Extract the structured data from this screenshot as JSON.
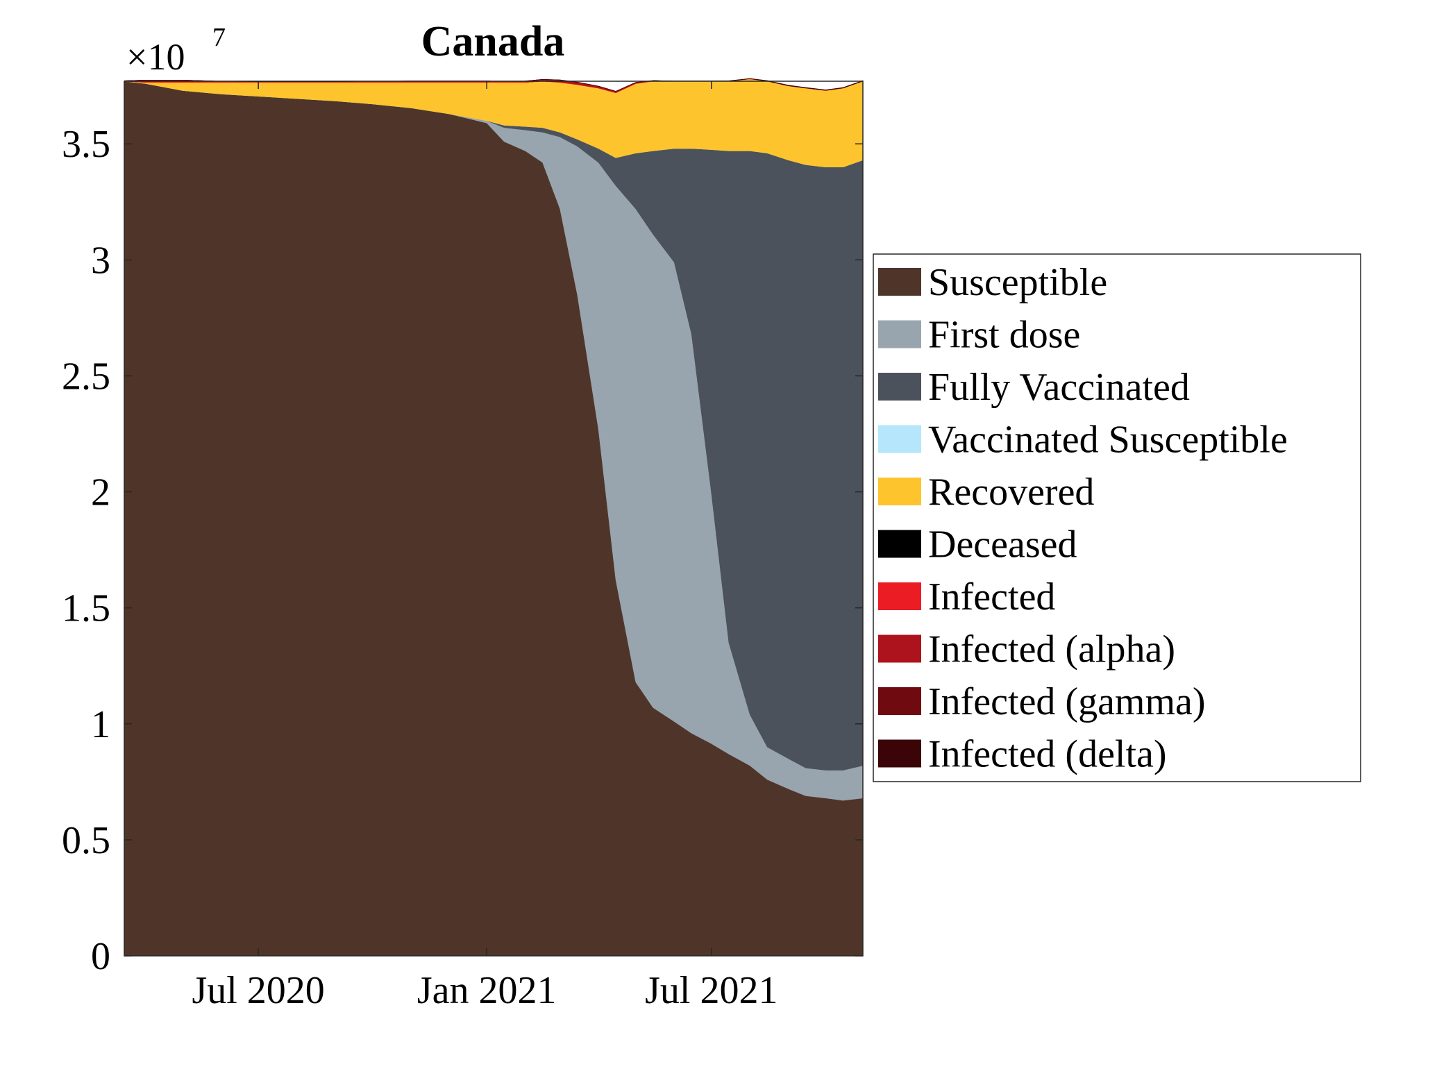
{
  "chart_data": {
    "type": "area",
    "stacked": true,
    "title": "Canada",
    "xlabel": "",
    "ylabel": "",
    "y_multiplier_label": {
      "base": "×10",
      "exponent": "7"
    },
    "ylim": [
      0,
      3.77
    ],
    "y_ticks": [
      {
        "value": 0,
        "label": "0"
      },
      {
        "value": 0.5,
        "label": "0.5"
      },
      {
        "value": 1,
        "label": "1"
      },
      {
        "value": 1.5,
        "label": "1.5"
      },
      {
        "value": 2,
        "label": "2"
      },
      {
        "value": 2.5,
        "label": "2.5"
      },
      {
        "value": 3,
        "label": "3"
      },
      {
        "value": 3.5,
        "label": "3.5"
      }
    ],
    "x_range": [
      "2020-03-15",
      "2021-10-31"
    ],
    "x_ticks": [
      {
        "date": "2020-07-01",
        "label": "Jul 2020"
      },
      {
        "date": "2021-01-01",
        "label": "Jan 2021"
      },
      {
        "date": "2021-07-01",
        "label": "Jul 2021"
      }
    ],
    "x": [
      "2020-03-15",
      "2020-04-01",
      "2020-05-01",
      "2020-06-01",
      "2020-07-01",
      "2020-08-01",
      "2020-09-01",
      "2020-10-01",
      "2020-11-01",
      "2020-12-01",
      "2021-01-01",
      "2021-01-15",
      "2021-02-01",
      "2021-02-15",
      "2021-03-01",
      "2021-03-15",
      "2021-04-01",
      "2021-04-15",
      "2021-05-01",
      "2021-05-15",
      "2021-06-01",
      "2021-06-15",
      "2021-07-01",
      "2021-07-15",
      "2021-08-01",
      "2021-08-15",
      "2021-09-01",
      "2021-09-15",
      "2021-10-01",
      "2021-10-15",
      "2021-10-31"
    ],
    "series": [
      {
        "name": "Susceptible",
        "color": "#4f3529",
        "values": [
          3.77,
          3.76,
          3.73,
          3.715,
          3.705,
          3.695,
          3.685,
          3.672,
          3.655,
          3.63,
          3.59,
          3.51,
          3.47,
          3.42,
          3.22,
          2.85,
          2.27,
          1.62,
          1.18,
          1.07,
          1.01,
          0.96,
          0.915,
          0.87,
          0.82,
          0.76,
          0.72,
          0.69,
          0.68,
          0.67,
          0.68
        ]
      },
      {
        "name": "First dose",
        "color": "#99a5ae",
        "values": [
          0,
          0,
          0,
          0,
          0,
          0,
          0,
          0,
          0,
          0,
          0.01,
          0.06,
          0.09,
          0.13,
          0.31,
          0.64,
          1.15,
          1.7,
          2.04,
          2.04,
          1.98,
          1.72,
          1.08,
          0.48,
          0.22,
          0.14,
          0.13,
          0.12,
          0.12,
          0.13,
          0.14
        ]
      },
      {
        "name": "Fully Vaccinated",
        "color": "#4b525b",
        "values": [
          0,
          0,
          0,
          0,
          0,
          0,
          0,
          0,
          0,
          0,
          0,
          0.01,
          0.015,
          0.02,
          0.02,
          0.03,
          0.06,
          0.12,
          0.24,
          0.36,
          0.49,
          0.8,
          1.48,
          2.12,
          2.43,
          2.56,
          2.58,
          2.6,
          2.6,
          2.6,
          2.61
        ]
      },
      {
        "name": "Vaccinated Susceptible",
        "color": "#b5e6fb",
        "values": [
          0,
          0,
          0,
          0,
          0,
          0,
          0,
          0,
          0,
          0,
          0,
          0,
          0,
          0,
          0,
          0,
          0,
          0,
          0,
          0,
          0,
          0,
          0,
          0,
          0,
          0,
          0,
          0,
          0,
          0,
          0
        ]
      },
      {
        "name": "Recovered",
        "color": "#fec42e",
        "values": [
          0,
          0.005,
          0.035,
          0.05,
          0.06,
          0.07,
          0.08,
          0.093,
          0.11,
          0.135,
          0.165,
          0.185,
          0.19,
          0.2,
          0.215,
          0.235,
          0.26,
          0.28,
          0.3,
          0.3,
          0.29,
          0.29,
          0.295,
          0.3,
          0.31,
          0.31,
          0.32,
          0.33,
          0.33,
          0.34,
          0.34
        ]
      },
      {
        "name": "Deceased",
        "color": "#000000",
        "values": [
          0,
          0,
          0,
          0,
          0,
          0,
          0,
          0,
          0,
          0,
          0,
          0,
          0,
          0,
          0,
          0,
          0,
          0,
          0,
          0,
          0,
          0,
          0,
          0,
          0,
          0,
          0,
          0,
          0,
          0,
          0
        ]
      },
      {
        "name": "Infected",
        "color": "#ec1c24",
        "values": [
          0.002,
          0.01,
          0.01,
          0.005,
          0.003,
          0.003,
          0.003,
          0.005,
          0.006,
          0.006,
          0.006,
          0.005,
          0.003,
          0.002,
          0.002,
          0.002,
          0.002,
          0.002,
          0.002,
          0.002,
          0.001,
          0.001,
          0.001,
          0.001,
          0.001,
          0.001,
          0.001,
          0.001,
          0.001,
          0.001,
          0.001
        ]
      },
      {
        "name": "Infected (alpha)",
        "color": "#ad131c",
        "values": [
          0,
          0,
          0,
          0,
          0,
          0,
          0,
          0,
          0,
          0,
          0,
          0,
          0.003,
          0.006,
          0.008,
          0.008,
          0.006,
          0.004,
          0.002,
          0.001,
          0,
          0,
          0,
          0,
          0,
          0,
          0,
          0,
          0,
          0,
          0
        ]
      },
      {
        "name": "Infected (gamma)",
        "color": "#6f0b10",
        "values": [
          0,
          0,
          0,
          0,
          0,
          0,
          0,
          0,
          0,
          0,
          0,
          0,
          0,
          0,
          0.001,
          0.001,
          0.001,
          0.001,
          0.001,
          0,
          0,
          0,
          0,
          0,
          0,
          0,
          0,
          0,
          0,
          0,
          0
        ]
      },
      {
        "name": "Infected (delta)",
        "color": "#3b0407",
        "values": [
          0,
          0,
          0,
          0,
          0,
          0,
          0,
          0,
          0,
          0,
          0,
          0,
          0,
          0,
          0,
          0,
          0,
          0,
          0,
          0,
          0,
          0,
          0,
          0.001,
          0.001,
          0.002,
          0.002,
          0.002,
          0.002,
          0.002,
          0.002
        ]
      }
    ],
    "legend_position": "right",
    "grid": false
  }
}
